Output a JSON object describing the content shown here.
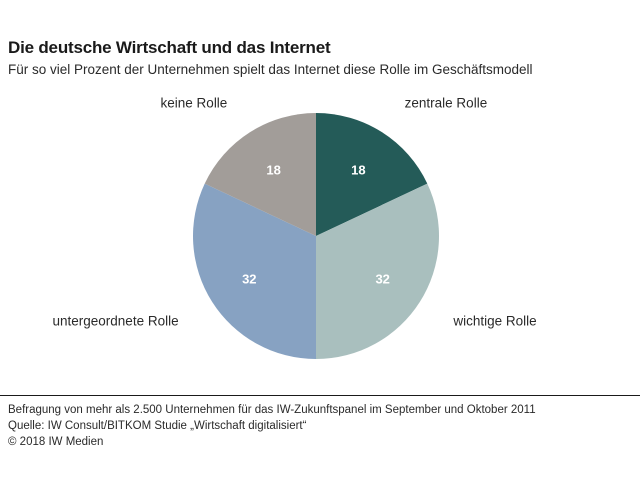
{
  "header": {
    "title": "Die deutsche Wirtschaft und das Internet",
    "subtitle": "Für so viel Prozent der Unternehmen spielt das Internet diese Rolle im Geschäftsmodell"
  },
  "chart_data": {
    "type": "pie",
    "title": "Die deutsche Wirtschaft und das Internet",
    "subtitle": "Für so viel Prozent der Unternehmen spielt das Internet diese Rolle im Geschäftsmodell",
    "unit": "%",
    "slices": [
      {
        "label": "zentrale Rolle",
        "value": 18,
        "color": "#245b58"
      },
      {
        "label": "wichtige Rolle",
        "value": 32,
        "color": "#a9bfbe"
      },
      {
        "label": "untergeordnete Rolle",
        "value": 32,
        "color": "#87a2c2"
      },
      {
        "label": "keine Rolle",
        "value": 18,
        "color": "#a29d99"
      }
    ],
    "start_angle": "12 o'clock",
    "direction": "clockwise",
    "legend": "none"
  },
  "footer": {
    "note": "Befragung von mehr als 2.500 Unternehmen für das IW-Zukunftspanel im September und Oktober 2011",
    "source": "Quelle: IW Consult/BITKOM Studie „Wirtschaft digitalisiert“",
    "copyright": "© 2018 IW Medien"
  }
}
